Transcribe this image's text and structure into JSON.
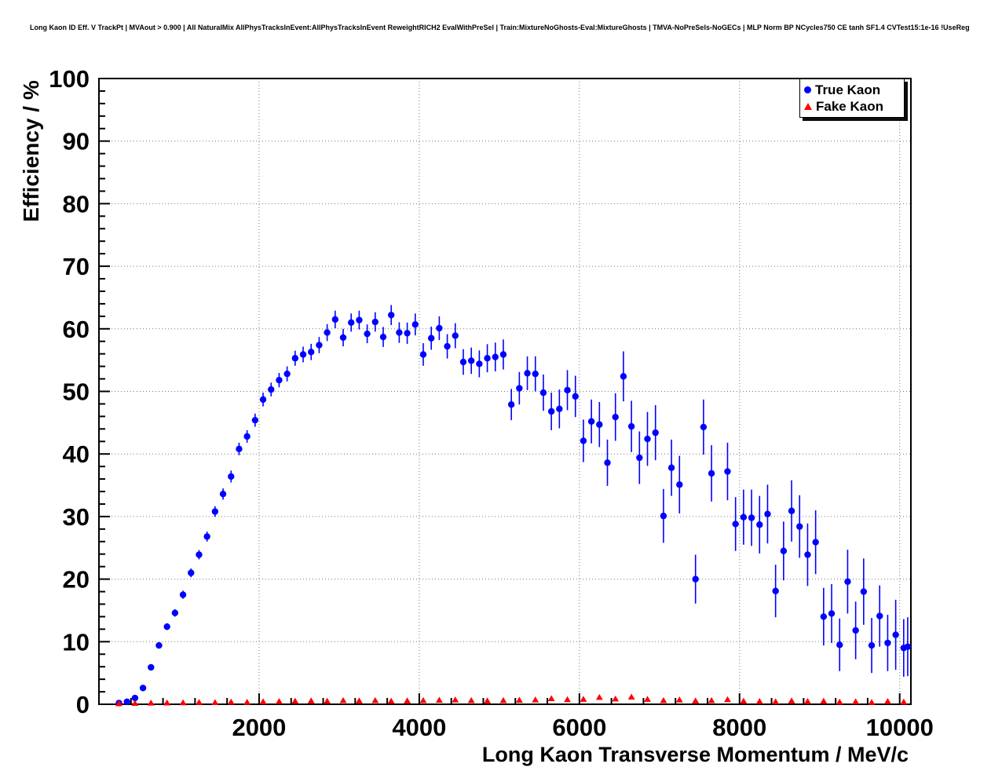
{
  "header": {
    "title": "Long Kaon ID Eff. V TrackPt | MVAout > 0.900 | All NaturalMix AllPhysTracksInEvent:AllPhysTracksInEvent ReweightRICH2 EvalWithPreSel | Train:MixtureNoGhosts-Eval:MixtureGhosts | TMVA-NoPreSels-NoGECs | MLP Norm BP NCycles750 CE tanh SF1.4 CVTest15:1e-16 !UseReg"
  },
  "chart_data": {
    "type": "scatter",
    "title": "",
    "xlabel": "Long Kaon Transverse Momentum / MeV/c",
    "ylabel": "Efficiency / %",
    "xlim": [
      0,
      10140
    ],
    "ylim": [
      0,
      100
    ],
    "x_ticks": [
      2000,
      4000,
      6000,
      8000,
      10000
    ],
    "y_ticks": [
      0,
      10,
      20,
      30,
      40,
      50,
      60,
      70,
      80,
      90,
      100
    ],
    "x_minor_step": 400,
    "y_minor_step": 2,
    "grid": true,
    "style": {
      "grid_color": "#777777",
      "frame_color": "#000000"
    },
    "legend": {
      "position": "top-right",
      "entries": [
        {
          "label": "True Kaon",
          "color": "#0000ff",
          "marker": "circle"
        },
        {
          "label": "Fake Kaon",
          "color": "#ff0000",
          "marker": "triangle"
        }
      ]
    },
    "series": [
      {
        "name": "True Kaon",
        "marker": "circle",
        "color": "#0000ff",
        "points": [
          [
            250,
            0.2,
            0.15
          ],
          [
            350,
            0.4,
            0.2
          ],
          [
            450,
            1.0,
            0.25
          ],
          [
            550,
            2.6,
            0.3
          ],
          [
            650,
            5.9,
            0.45
          ],
          [
            750,
            9.4,
            0.5
          ],
          [
            850,
            12.4,
            0.55
          ],
          [
            950,
            14.6,
            0.6
          ],
          [
            1050,
            17.5,
            0.65
          ],
          [
            1150,
            21.0,
            0.7
          ],
          [
            1250,
            23.9,
            0.75
          ],
          [
            1350,
            26.8,
            0.8
          ],
          [
            1450,
            30.8,
            0.85
          ],
          [
            1550,
            33.6,
            0.9
          ],
          [
            1650,
            36.4,
            0.95
          ],
          [
            1750,
            40.8,
            1.0
          ],
          [
            1850,
            42.8,
            1.0
          ],
          [
            1950,
            45.4,
            1.05
          ],
          [
            2050,
            48.7,
            1.1
          ],
          [
            2150,
            50.3,
            1.1
          ],
          [
            2250,
            51.8,
            1.15
          ],
          [
            2350,
            52.8,
            1.2
          ],
          [
            2450,
            55.3,
            1.2
          ],
          [
            2550,
            55.9,
            1.25
          ],
          [
            2650,
            56.3,
            1.3
          ],
          [
            2750,
            57.4,
            1.3
          ],
          [
            2850,
            59.4,
            1.35
          ],
          [
            2950,
            61.5,
            1.4
          ],
          [
            3050,
            58.6,
            1.4
          ],
          [
            3150,
            61.0,
            1.45
          ],
          [
            3250,
            61.4,
            1.5
          ],
          [
            3350,
            59.2,
            1.5
          ],
          [
            3450,
            61.1,
            1.55
          ],
          [
            3550,
            58.7,
            1.6
          ],
          [
            3650,
            62.2,
            1.6
          ],
          [
            3750,
            59.4,
            1.65
          ],
          [
            3850,
            59.3,
            1.7
          ],
          [
            3950,
            60.7,
            1.75
          ],
          [
            4050,
            55.9,
            1.8
          ],
          [
            4150,
            58.5,
            1.85
          ],
          [
            4250,
            60.1,
            1.9
          ],
          [
            4350,
            57.2,
            1.95
          ],
          [
            4450,
            58.9,
            2.0
          ],
          [
            4550,
            54.7,
            2.05
          ],
          [
            4650,
            54.9,
            2.1
          ],
          [
            4750,
            54.4,
            2.15
          ],
          [
            4850,
            55.3,
            2.25
          ],
          [
            4950,
            55.5,
            2.3
          ],
          [
            5050,
            55.9,
            2.4
          ],
          [
            5150,
            47.9,
            2.5
          ],
          [
            5250,
            50.5,
            2.6
          ],
          [
            5350,
            52.9,
            2.7
          ],
          [
            5450,
            52.8,
            2.8
          ],
          [
            5550,
            49.8,
            2.9
          ],
          [
            5650,
            46.8,
            3.0
          ],
          [
            5750,
            47.2,
            3.1
          ],
          [
            5850,
            50.2,
            3.2
          ],
          [
            5950,
            49.2,
            3.3
          ],
          [
            6050,
            42.1,
            3.4
          ],
          [
            6150,
            45.2,
            3.5
          ],
          [
            6250,
            44.7,
            3.6
          ],
          [
            6350,
            38.6,
            3.7
          ],
          [
            6450,
            45.9,
            3.8
          ],
          [
            6550,
            52.4,
            4.0
          ],
          [
            6650,
            44.4,
            4.1
          ],
          [
            6750,
            39.4,
            4.2
          ],
          [
            6850,
            42.4,
            4.3
          ],
          [
            6950,
            43.4,
            4.4
          ],
          [
            7050,
            30.1,
            4.3
          ],
          [
            7150,
            37.8,
            4.5
          ],
          [
            7250,
            35.1,
            4.6
          ],
          [
            7450,
            20.0,
            3.9
          ],
          [
            7550,
            44.3,
            4.4
          ],
          [
            7650,
            36.9,
            4.5
          ],
          [
            7850,
            37.2,
            4.6
          ],
          [
            7950,
            28.8,
            4.3
          ],
          [
            8050,
            29.9,
            4.4
          ],
          [
            8150,
            29.8,
            4.5
          ],
          [
            8250,
            28.7,
            4.6
          ],
          [
            8350,
            30.4,
            4.7
          ],
          [
            8450,
            18.1,
            4.2
          ],
          [
            8550,
            24.5,
            4.7
          ],
          [
            8650,
            30.9,
            4.9
          ],
          [
            8750,
            28.4,
            5.0
          ],
          [
            8850,
            23.9,
            5.0
          ],
          [
            8950,
            25.9,
            5.1
          ],
          [
            9050,
            14.0,
            4.6
          ],
          [
            9150,
            14.5,
            4.7
          ],
          [
            9250,
            9.5,
            4.2
          ],
          [
            9350,
            19.6,
            5.1
          ],
          [
            9450,
            11.8,
            4.6
          ],
          [
            9550,
            18.0,
            5.3
          ],
          [
            9650,
            9.4,
            4.4
          ],
          [
            9750,
            14.1,
            4.9
          ],
          [
            9850,
            9.8,
            4.5
          ],
          [
            9950,
            11.1,
            5.6
          ],
          [
            10050,
            9.0,
            4.6
          ],
          [
            10100,
            9.2,
            4.7
          ]
        ]
      },
      {
        "name": "Fake Kaon",
        "marker": "triangle",
        "color": "#ff0000",
        "points": [
          [
            250,
            0.1
          ],
          [
            450,
            0.15
          ],
          [
            650,
            0.2
          ],
          [
            850,
            0.22
          ],
          [
            1050,
            0.25
          ],
          [
            1250,
            0.3
          ],
          [
            1450,
            0.28
          ],
          [
            1650,
            0.35
          ],
          [
            1850,
            0.32
          ],
          [
            2050,
            0.4
          ],
          [
            2250,
            0.45
          ],
          [
            2450,
            0.5
          ],
          [
            2650,
            0.55
          ],
          [
            2850,
            0.5
          ],
          [
            3050,
            0.6
          ],
          [
            3250,
            0.55
          ],
          [
            3450,
            0.6
          ],
          [
            3650,
            0.5
          ],
          [
            3850,
            0.55
          ],
          [
            4050,
            0.6
          ],
          [
            4250,
            0.65
          ],
          [
            4450,
            0.7
          ],
          [
            4650,
            0.6
          ],
          [
            4850,
            0.55
          ],
          [
            5050,
            0.6
          ],
          [
            5250,
            0.65
          ],
          [
            5450,
            0.7
          ],
          [
            5650,
            0.9
          ],
          [
            5850,
            0.75
          ],
          [
            6050,
            0.8
          ],
          [
            6250,
            1.1
          ],
          [
            6450,
            0.85
          ],
          [
            6650,
            1.15
          ],
          [
            6850,
            0.8
          ],
          [
            7050,
            0.6
          ],
          [
            7250,
            0.7
          ],
          [
            7450,
            0.55
          ],
          [
            7650,
            0.6
          ],
          [
            7850,
            0.75
          ],
          [
            8050,
            0.5
          ],
          [
            8250,
            0.45
          ],
          [
            8450,
            0.4
          ],
          [
            8650,
            0.55
          ],
          [
            8850,
            0.45
          ],
          [
            9050,
            0.5
          ],
          [
            9250,
            0.35
          ],
          [
            9450,
            0.4
          ],
          [
            9650,
            0.3
          ],
          [
            9850,
            0.45
          ],
          [
            10050,
            0.35
          ]
        ]
      }
    ]
  }
}
